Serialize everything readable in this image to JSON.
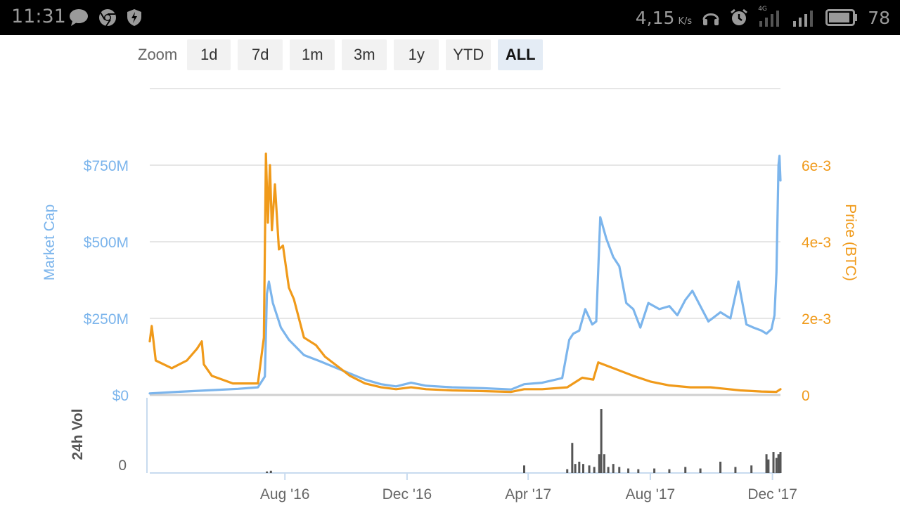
{
  "status_bar": {
    "time": "11:31",
    "left_icons": [
      "message-icon",
      "chrome-icon",
      "shield-icon"
    ],
    "network_speed": "4,15",
    "network_speed_unit": "K/s",
    "right_icons": [
      "headphones-icon",
      "alarm-icon",
      "signal-4g-icon",
      "signal-icon",
      "battery-icon"
    ],
    "network_type": "4G",
    "battery_percent": "78"
  },
  "zoom": {
    "label": "Zoom",
    "options": [
      "1d",
      "7d",
      "1m",
      "3m",
      "1y",
      "YTD",
      "ALL"
    ],
    "selected": "ALL"
  },
  "chart_data": {
    "type": "line",
    "colors": {
      "market_cap": "#7cb5ec",
      "price": "#f09a1a",
      "volume": "#555555",
      "grid": "#e6e6e6"
    },
    "left_axis": {
      "label": "Market Cap",
      "ticks": [
        {
          "value": 0,
          "label": "$0"
        },
        {
          "value": 250,
          "label": "$250M"
        },
        {
          "value": 500,
          "label": "$500M"
        },
        {
          "value": 750,
          "label": "$750M"
        }
      ],
      "range": [
        0,
        1000
      ]
    },
    "right_axis": {
      "label": "Price (BTC)",
      "ticks": [
        {
          "value": 0,
          "label": "0"
        },
        {
          "value": 0.002,
          "label": "2e-3"
        },
        {
          "value": 0.004,
          "label": "4e-3"
        },
        {
          "value": 0.006,
          "label": "6e-3"
        }
      ],
      "range": [
        0,
        0.008
      ]
    },
    "volume_axis": {
      "label": "24h Vol",
      "ticks": [
        {
          "value": 0,
          "label": "0"
        }
      ]
    },
    "x_ticks": [
      {
        "x": "2016-08-01",
        "label": "Aug '16"
      },
      {
        "x": "2016-12-01",
        "label": "Dec '16"
      },
      {
        "x": "2017-04-01",
        "label": "Apr '17"
      },
      {
        "x": "2017-08-01",
        "label": "Aug '17"
      },
      {
        "x": "2017-12-01",
        "label": "Dec '17"
      }
    ],
    "x_range": [
      "2016-03-19",
      "2017-12-09"
    ],
    "grid": true,
    "series": [
      {
        "name": "Market Cap",
        "axis": "left",
        "x": [
          "2016-03-19",
          "2016-04-15",
          "2016-05-15",
          "2016-06-15",
          "2016-07-05",
          "2016-07-12",
          "2016-07-14",
          "2016-07-16",
          "2016-07-20",
          "2016-07-24",
          "2016-07-28",
          "2016-08-05",
          "2016-08-20",
          "2016-09-05",
          "2016-09-20",
          "2016-10-05",
          "2016-10-20",
          "2016-11-05",
          "2016-11-20",
          "2016-12-05",
          "2016-12-20",
          "2017-01-15",
          "2017-02-15",
          "2017-03-15",
          "2017-03-28",
          "2017-04-15",
          "2017-05-05",
          "2017-05-12",
          "2017-05-16",
          "2017-05-22",
          "2017-05-28",
          "2017-06-04",
          "2017-06-08",
          "2017-06-12",
          "2017-06-18",
          "2017-06-25",
          "2017-07-01",
          "2017-07-08",
          "2017-07-15",
          "2017-07-22",
          "2017-07-30",
          "2017-08-10",
          "2017-08-20",
          "2017-08-28",
          "2017-09-05",
          "2017-09-12",
          "2017-09-20",
          "2017-09-28",
          "2017-10-10",
          "2017-10-20",
          "2017-10-28",
          "2017-11-05",
          "2017-11-12",
          "2017-11-20",
          "2017-11-25",
          "2017-11-30",
          "2017-12-03",
          "2017-12-05",
          "2017-12-07",
          "2017-12-08",
          "2017-12-09"
        ],
        "values": [
          5,
          10,
          15,
          20,
          25,
          60,
          330,
          370,
          300,
          260,
          220,
          180,
          130,
          110,
          90,
          70,
          50,
          35,
          28,
          40,
          30,
          25,
          22,
          18,
          35,
          40,
          55,
          180,
          200,
          210,
          280,
          230,
          240,
          580,
          510,
          450,
          420,
          300,
          280,
          220,
          300,
          280,
          290,
          260,
          310,
          340,
          290,
          240,
          270,
          250,
          370,
          230,
          220,
          210,
          200,
          215,
          260,
          400,
          750,
          780,
          700
        ]
      },
      {
        "name": "Price (BTC)",
        "axis": "right",
        "x": [
          "2016-03-19",
          "2016-03-21",
          "2016-03-25",
          "2016-04-10",
          "2016-04-25",
          "2016-05-05",
          "2016-05-10",
          "2016-05-12",
          "2016-05-20",
          "2016-06-10",
          "2016-07-05",
          "2016-07-11",
          "2016-07-13",
          "2016-07-15",
          "2016-07-17",
          "2016-07-19",
          "2016-07-22",
          "2016-07-26",
          "2016-07-30",
          "2016-08-05",
          "2016-08-10",
          "2016-08-20",
          "2016-09-01",
          "2016-09-10",
          "2016-09-20",
          "2016-10-05",
          "2016-10-20",
          "2016-11-05",
          "2016-11-20",
          "2016-12-05",
          "2016-12-20",
          "2017-01-15",
          "2017-02-15",
          "2017-03-15",
          "2017-03-28",
          "2017-04-15",
          "2017-05-10",
          "2017-05-25",
          "2017-06-05",
          "2017-06-10",
          "2017-06-25",
          "2017-07-15",
          "2017-08-01",
          "2017-08-20",
          "2017-09-10",
          "2017-09-30",
          "2017-10-30",
          "2017-11-20",
          "2017-12-05",
          "2017-12-09"
        ],
        "values": [
          0.0014,
          0.0018,
          0.0009,
          0.0007,
          0.0009,
          0.0012,
          0.0014,
          0.0008,
          0.0005,
          0.0003,
          0.0003,
          0.0015,
          0.0063,
          0.0045,
          0.006,
          0.0043,
          0.0055,
          0.0038,
          0.0039,
          0.0028,
          0.0025,
          0.0015,
          0.0013,
          0.001,
          0.0008,
          0.0005,
          0.0003,
          0.0002,
          0.00015,
          0.0002,
          0.00015,
          0.00012,
          0.0001,
          8e-05,
          0.00015,
          0.00015,
          0.0002,
          0.00045,
          0.0004,
          0.00085,
          0.0007,
          0.0005,
          0.00035,
          0.00025,
          0.0002,
          0.0002,
          0.00012,
          9e-05,
          8e-05,
          0.00015
        ]
      },
      {
        "name": "24h Vol",
        "axis": "volume",
        "type": "bar",
        "x": [
          "2016-07-14",
          "2016-07-18",
          "2017-03-28",
          "2017-05-10",
          "2017-05-15",
          "2017-05-18",
          "2017-05-22",
          "2017-05-26",
          "2017-06-01",
          "2017-06-06",
          "2017-06-11",
          "2017-06-13",
          "2017-06-16",
          "2017-06-20",
          "2017-06-25",
          "2017-07-01",
          "2017-07-10",
          "2017-07-20",
          "2017-08-05",
          "2017-08-20",
          "2017-09-05",
          "2017-09-20",
          "2017-10-10",
          "2017-10-25",
          "2017-11-10",
          "2017-11-25",
          "2017-11-27",
          "2017-12-02",
          "2017-12-05",
          "2017-12-07",
          "2017-12-09"
        ],
        "values": [
          2,
          3,
          10,
          5,
          40,
          12,
          15,
          12,
          10,
          8,
          25,
          85,
          25,
          8,
          12,
          8,
          6,
          5,
          6,
          5,
          8,
          6,
          15,
          8,
          10,
          25,
          18,
          28,
          20,
          25,
          28
        ]
      }
    ]
  }
}
